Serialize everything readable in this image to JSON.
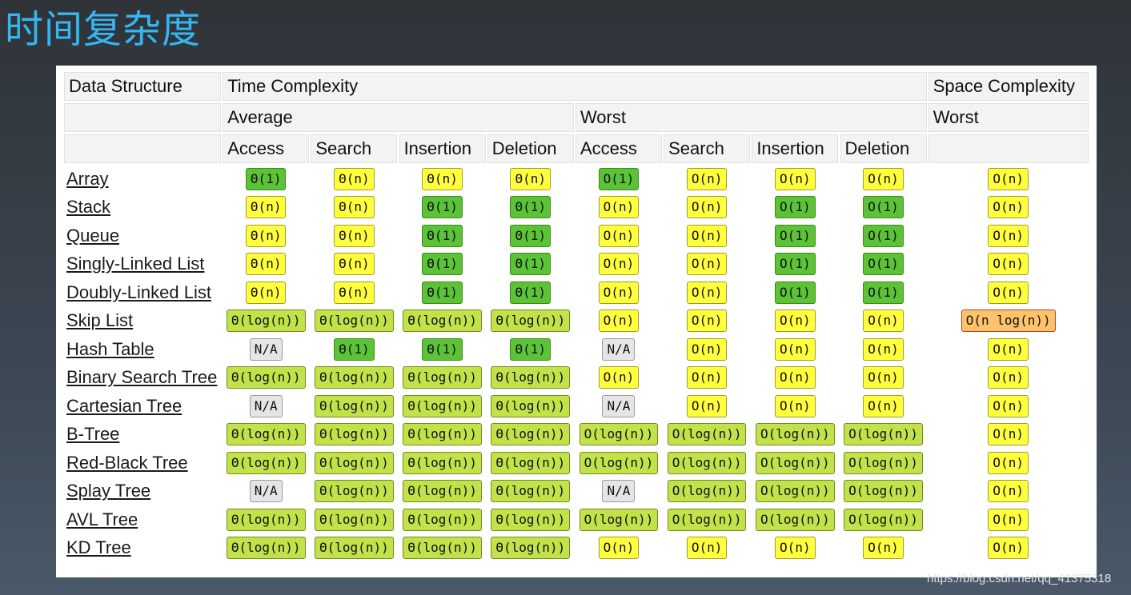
{
  "title": "时间复杂度",
  "header": {
    "data_structure": "Data Structure",
    "time_complexity": "Time Complexity",
    "space_complexity": "Space Complexity",
    "average": "Average",
    "worst": "Worst",
    "space_worst": "Worst",
    "ops": [
      "Access",
      "Search",
      "Insertion",
      "Deletion",
      "Access",
      "Search",
      "Insertion",
      "Deletion"
    ]
  },
  "rows": [
    {
      "name": "Array",
      "cells": [
        [
          "Θ(1)",
          "green"
        ],
        [
          "Θ(n)",
          "yellow"
        ],
        [
          "Θ(n)",
          "yellow"
        ],
        [
          "Θ(n)",
          "yellow"
        ],
        [
          "O(1)",
          "green"
        ],
        [
          "O(n)",
          "yellow"
        ],
        [
          "O(n)",
          "yellow"
        ],
        [
          "O(n)",
          "yellow"
        ],
        [
          "O(n)",
          "yellow"
        ]
      ]
    },
    {
      "name": "Stack",
      "cells": [
        [
          "Θ(n)",
          "yellow"
        ],
        [
          "Θ(n)",
          "yellow"
        ],
        [
          "Θ(1)",
          "green"
        ],
        [
          "Θ(1)",
          "green"
        ],
        [
          "O(n)",
          "yellow"
        ],
        [
          "O(n)",
          "yellow"
        ],
        [
          "O(1)",
          "green"
        ],
        [
          "O(1)",
          "green"
        ],
        [
          "O(n)",
          "yellow"
        ]
      ]
    },
    {
      "name": "Queue",
      "cells": [
        [
          "Θ(n)",
          "yellow"
        ],
        [
          "Θ(n)",
          "yellow"
        ],
        [
          "Θ(1)",
          "green"
        ],
        [
          "Θ(1)",
          "green"
        ],
        [
          "O(n)",
          "yellow"
        ],
        [
          "O(n)",
          "yellow"
        ],
        [
          "O(1)",
          "green"
        ],
        [
          "O(1)",
          "green"
        ],
        [
          "O(n)",
          "yellow"
        ]
      ]
    },
    {
      "name": "Singly-Linked List",
      "cells": [
        [
          "Θ(n)",
          "yellow"
        ],
        [
          "Θ(n)",
          "yellow"
        ],
        [
          "Θ(1)",
          "green"
        ],
        [
          "Θ(1)",
          "green"
        ],
        [
          "O(n)",
          "yellow"
        ],
        [
          "O(n)",
          "yellow"
        ],
        [
          "O(1)",
          "green"
        ],
        [
          "O(1)",
          "green"
        ],
        [
          "O(n)",
          "yellow"
        ]
      ]
    },
    {
      "name": "Doubly-Linked List",
      "cells": [
        [
          "Θ(n)",
          "yellow"
        ],
        [
          "Θ(n)",
          "yellow"
        ],
        [
          "Θ(1)",
          "green"
        ],
        [
          "Θ(1)",
          "green"
        ],
        [
          "O(n)",
          "yellow"
        ],
        [
          "O(n)",
          "yellow"
        ],
        [
          "O(1)",
          "green"
        ],
        [
          "O(1)",
          "green"
        ],
        [
          "O(n)",
          "yellow"
        ]
      ]
    },
    {
      "name": "Skip List",
      "cells": [
        [
          "Θ(log(n))",
          "lime"
        ],
        [
          "Θ(log(n))",
          "lime"
        ],
        [
          "Θ(log(n))",
          "lime"
        ],
        [
          "Θ(log(n))",
          "lime"
        ],
        [
          "O(n)",
          "yellow"
        ],
        [
          "O(n)",
          "yellow"
        ],
        [
          "O(n)",
          "yellow"
        ],
        [
          "O(n)",
          "yellow"
        ],
        [
          "O(n log(n))",
          "orange"
        ]
      ]
    },
    {
      "name": "Hash Table",
      "cells": [
        [
          "N/A",
          "gray"
        ],
        [
          "Θ(1)",
          "green"
        ],
        [
          "Θ(1)",
          "green"
        ],
        [
          "Θ(1)",
          "green"
        ],
        [
          "N/A",
          "gray"
        ],
        [
          "O(n)",
          "yellow"
        ],
        [
          "O(n)",
          "yellow"
        ],
        [
          "O(n)",
          "yellow"
        ],
        [
          "O(n)",
          "yellow"
        ]
      ]
    },
    {
      "name": "Binary Search Tree",
      "cells": [
        [
          "Θ(log(n))",
          "lime"
        ],
        [
          "Θ(log(n))",
          "lime"
        ],
        [
          "Θ(log(n))",
          "lime"
        ],
        [
          "Θ(log(n))",
          "lime"
        ],
        [
          "O(n)",
          "yellow"
        ],
        [
          "O(n)",
          "yellow"
        ],
        [
          "O(n)",
          "yellow"
        ],
        [
          "O(n)",
          "yellow"
        ],
        [
          "O(n)",
          "yellow"
        ]
      ]
    },
    {
      "name": "Cartesian Tree",
      "cells": [
        [
          "N/A",
          "gray"
        ],
        [
          "Θ(log(n))",
          "lime"
        ],
        [
          "Θ(log(n))",
          "lime"
        ],
        [
          "Θ(log(n))",
          "lime"
        ],
        [
          "N/A",
          "gray"
        ],
        [
          "O(n)",
          "yellow"
        ],
        [
          "O(n)",
          "yellow"
        ],
        [
          "O(n)",
          "yellow"
        ],
        [
          "O(n)",
          "yellow"
        ]
      ]
    },
    {
      "name": "B-Tree",
      "cells": [
        [
          "Θ(log(n))",
          "lime"
        ],
        [
          "Θ(log(n))",
          "lime"
        ],
        [
          "Θ(log(n))",
          "lime"
        ],
        [
          "Θ(log(n))",
          "lime"
        ],
        [
          "O(log(n))",
          "lime"
        ],
        [
          "O(log(n))",
          "lime"
        ],
        [
          "O(log(n))",
          "lime"
        ],
        [
          "O(log(n))",
          "lime"
        ],
        [
          "O(n)",
          "yellow"
        ]
      ]
    },
    {
      "name": "Red-Black Tree",
      "cells": [
        [
          "Θ(log(n))",
          "lime"
        ],
        [
          "Θ(log(n))",
          "lime"
        ],
        [
          "Θ(log(n))",
          "lime"
        ],
        [
          "Θ(log(n))",
          "lime"
        ],
        [
          "O(log(n))",
          "lime"
        ],
        [
          "O(log(n))",
          "lime"
        ],
        [
          "O(log(n))",
          "lime"
        ],
        [
          "O(log(n))",
          "lime"
        ],
        [
          "O(n)",
          "yellow"
        ]
      ]
    },
    {
      "name": "Splay Tree",
      "cells": [
        [
          "N/A",
          "gray"
        ],
        [
          "Θ(log(n))",
          "lime"
        ],
        [
          "Θ(log(n))",
          "lime"
        ],
        [
          "Θ(log(n))",
          "lime"
        ],
        [
          "N/A",
          "gray"
        ],
        [
          "O(log(n))",
          "lime"
        ],
        [
          "O(log(n))",
          "lime"
        ],
        [
          "O(log(n))",
          "lime"
        ],
        [
          "O(n)",
          "yellow"
        ]
      ]
    },
    {
      "name": "AVL Tree",
      "cells": [
        [
          "Θ(log(n))",
          "lime"
        ],
        [
          "Θ(log(n))",
          "lime"
        ],
        [
          "Θ(log(n))",
          "lime"
        ],
        [
          "Θ(log(n))",
          "lime"
        ],
        [
          "O(log(n))",
          "lime"
        ],
        [
          "O(log(n))",
          "lime"
        ],
        [
          "O(log(n))",
          "lime"
        ],
        [
          "O(log(n))",
          "lime"
        ],
        [
          "O(n)",
          "yellow"
        ]
      ]
    },
    {
      "name": "KD Tree",
      "cells": [
        [
          "Θ(log(n))",
          "lime"
        ],
        [
          "Θ(log(n))",
          "lime"
        ],
        [
          "Θ(log(n))",
          "lime"
        ],
        [
          "Θ(log(n))",
          "lime"
        ],
        [
          "O(n)",
          "yellow"
        ],
        [
          "O(n)",
          "yellow"
        ],
        [
          "O(n)",
          "yellow"
        ],
        [
          "O(n)",
          "yellow"
        ],
        [
          "O(n)",
          "yellow"
        ]
      ]
    }
  ],
  "colors": {
    "green": "#5cc338",
    "yellow": "#ffff3e",
    "lime": "#c2e24a",
    "gray": "#e5e5e5",
    "orange": "#fcc36a",
    "title": "#35b6f0"
  },
  "watermark": "https://blog.csdn.net/qq_41375318"
}
